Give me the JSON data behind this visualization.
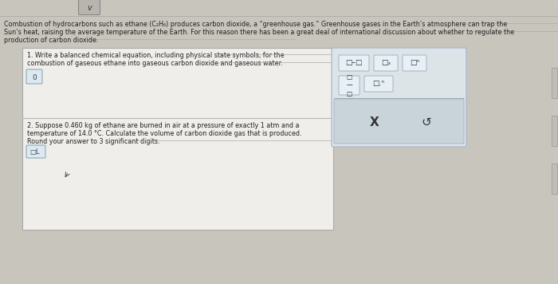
{
  "bg_color": "#c8c5bc",
  "top_badge_text": "v",
  "header_text_line1": "Combustion of hydrocarbons such as ethane (C₂H₆) produces carbon dioxide, a “greenhouse gas.” Greenhouse gases in the Earth’s atmosphere can trap the",
  "header_text_line2": "Sun’s heat, raising the average temperature of the Earth. For this reason there has been a great deal of international discussion about whether to regulate the",
  "header_text_line3": "production of carbon dioxide.",
  "q1_text_line1": "1. Write a balanced chemical equation, including physical state symbols, for the",
  "q1_text_line2": "combustion of gaseous ethane into gaseous carbon dioxide and gaseous water.",
  "q2_text_line1": "2. Suppose 0.460 kg of ethane are burned in air at a pressure of exactly 1 atm and a",
  "q2_text_line2": "temperature of 14.0 °C. Calculate the volume of carbon dioxide gas that is produced.",
  "q2_text_line3": "Round your answer to 3 significant digits.",
  "box_bg": "#f0eeea",
  "box_border": "#aaaaaa",
  "q1_input_bg": "#dde8f0",
  "q1_input_border": "#8aaabb",
  "right_panel_bg": "#dce4e8",
  "right_panel_border": "#aabbcc",
  "btn_bg": "#e8f0f5",
  "btn_border": "#99aabb",
  "xundo_bg": "#c8d4da",
  "xundo_border": "#99aabb",
  "right_scroll_bg": "#cccccc",
  "right_scroll_border": "#aaaaaa",
  "text_color": "#222222",
  "x_symbol": "X",
  "undo_symbol": "↺"
}
